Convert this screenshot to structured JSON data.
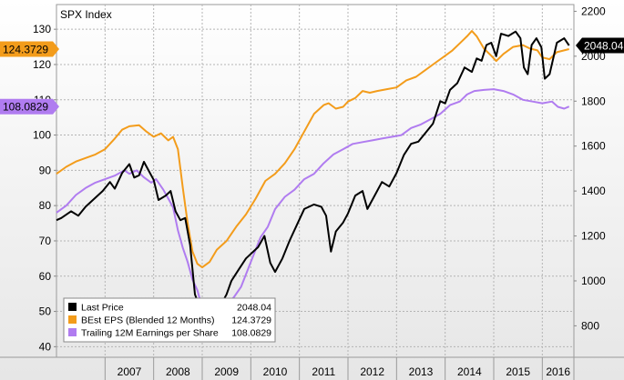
{
  "chart_data": {
    "type": "line",
    "title": "SPX Index",
    "x_labels": [
      "2007",
      "2008",
      "2009",
      "2010",
      "2011",
      "2012",
      "2013",
      "2014",
      "2015",
      "2016"
    ],
    "left_axis": {
      "ticks": [
        40,
        50,
        60,
        70,
        80,
        90,
        100,
        110,
        120,
        130
      ],
      "range": [
        37,
        137
      ]
    },
    "right_axis": {
      "ticks": [
        800,
        1000,
        1200,
        1400,
        1600,
        1800,
        2000,
        2200
      ],
      "range": [
        660,
        2230
      ]
    },
    "grid": true,
    "legend_position": "bottom-left",
    "series": [
      {
        "name": "Last Price",
        "color": "#000000",
        "axis": "right",
        "last_value": "2048.04",
        "points": [
          [
            2006.0,
            1270
          ],
          [
            2006.1,
            1280
          ],
          [
            2006.3,
            1310
          ],
          [
            2006.45,
            1290
          ],
          [
            2006.6,
            1330
          ],
          [
            2006.8,
            1370
          ],
          [
            2006.95,
            1400
          ],
          [
            2007.1,
            1440
          ],
          [
            2007.2,
            1410
          ],
          [
            2007.35,
            1480
          ],
          [
            2007.5,
            1520
          ],
          [
            2007.6,
            1460
          ],
          [
            2007.7,
            1470
          ],
          [
            2007.8,
            1530
          ],
          [
            2007.9,
            1490
          ],
          [
            2008.0,
            1450
          ],
          [
            2008.1,
            1360
          ],
          [
            2008.25,
            1380
          ],
          [
            2008.35,
            1400
          ],
          [
            2008.45,
            1310
          ],
          [
            2008.55,
            1270
          ],
          [
            2008.65,
            1280
          ],
          [
            2008.75,
            1160
          ],
          [
            2008.85,
            940
          ],
          [
            2008.92,
            900
          ],
          [
            2009.0,
            880
          ],
          [
            2009.1,
            820
          ],
          [
            2009.18,
            735
          ],
          [
            2009.25,
            800
          ],
          [
            2009.35,
            880
          ],
          [
            2009.5,
            940
          ],
          [
            2009.6,
            1000
          ],
          [
            2009.75,
            1050
          ],
          [
            2009.9,
            1100
          ],
          [
            2010.0,
            1120
          ],
          [
            2010.15,
            1150
          ],
          [
            2010.28,
            1200
          ],
          [
            2010.4,
            1080
          ],
          [
            2010.5,
            1040
          ],
          [
            2010.65,
            1100
          ],
          [
            2010.8,
            1180
          ],
          [
            2010.95,
            1250
          ],
          [
            2011.1,
            1320
          ],
          [
            2011.3,
            1340
          ],
          [
            2011.45,
            1330
          ],
          [
            2011.55,
            1290
          ],
          [
            2011.65,
            1130
          ],
          [
            2011.75,
            1220
          ],
          [
            2011.9,
            1260
          ],
          [
            2012.0,
            1300
          ],
          [
            2012.15,
            1380
          ],
          [
            2012.3,
            1400
          ],
          [
            2012.4,
            1320
          ],
          [
            2012.55,
            1380
          ],
          [
            2012.7,
            1440
          ],
          [
            2012.85,
            1420
          ],
          [
            2013.0,
            1480
          ],
          [
            2013.15,
            1560
          ],
          [
            2013.3,
            1610
          ],
          [
            2013.45,
            1620
          ],
          [
            2013.6,
            1660
          ],
          [
            2013.75,
            1700
          ],
          [
            2013.9,
            1800
          ],
          [
            2014.0,
            1790
          ],
          [
            2014.1,
            1850
          ],
          [
            2014.25,
            1880
          ],
          [
            2014.4,
            1950
          ],
          [
            2014.55,
            1930
          ],
          [
            2014.65,
            1990
          ],
          [
            2014.75,
            1980
          ],
          [
            2014.85,
            2050
          ],
          [
            2014.95,
            2060
          ],
          [
            2015.05,
            2000
          ],
          [
            2015.15,
            2100
          ],
          [
            2015.3,
            2090
          ],
          [
            2015.45,
            2110
          ],
          [
            2015.55,
            2080
          ],
          [
            2015.62,
            1950
          ],
          [
            2015.7,
            1920
          ],
          [
            2015.78,
            2050
          ],
          [
            2015.88,
            2080
          ],
          [
            2015.98,
            2040
          ],
          [
            2016.05,
            1900
          ],
          [
            2016.15,
            1920
          ],
          [
            2016.3,
            2060
          ],
          [
            2016.45,
            2080
          ],
          [
            2016.55,
            2048
          ]
        ]
      },
      {
        "name": "BEst EPS (Blended 12 Months)",
        "color": "#f39c1b",
        "axis": "left",
        "last_value": "124.3729",
        "points": [
          [
            2006.0,
            89
          ],
          [
            2006.2,
            91
          ],
          [
            2006.4,
            92.5
          ],
          [
            2006.6,
            93.5
          ],
          [
            2006.8,
            94.5
          ],
          [
            2007.0,
            96
          ],
          [
            2007.2,
            99
          ],
          [
            2007.35,
            101.5
          ],
          [
            2007.5,
            102.5
          ],
          [
            2007.7,
            102.8
          ],
          [
            2007.85,
            101
          ],
          [
            2008.0,
            99.5
          ],
          [
            2008.15,
            100.5
          ],
          [
            2008.3,
            98.5
          ],
          [
            2008.4,
            99.5
          ],
          [
            2008.5,
            96
          ],
          [
            2008.6,
            85
          ],
          [
            2008.7,
            75
          ],
          [
            2008.8,
            67
          ],
          [
            2008.9,
            63.5
          ],
          [
            2009.0,
            62.5
          ],
          [
            2009.15,
            64
          ],
          [
            2009.3,
            67.5
          ],
          [
            2009.5,
            70
          ],
          [
            2009.7,
            74
          ],
          [
            2009.9,
            77.5
          ],
          [
            2010.1,
            82
          ],
          [
            2010.3,
            87
          ],
          [
            2010.5,
            89
          ],
          [
            2010.7,
            92
          ],
          [
            2010.9,
            96
          ],
          [
            2011.1,
            101
          ],
          [
            2011.3,
            106
          ],
          [
            2011.5,
            108.5
          ],
          [
            2011.6,
            109
          ],
          [
            2011.75,
            107.5
          ],
          [
            2011.9,
            108
          ],
          [
            2012.0,
            109.5
          ],
          [
            2012.15,
            110.5
          ],
          [
            2012.3,
            112.5
          ],
          [
            2012.45,
            112
          ],
          [
            2012.6,
            112.5
          ],
          [
            2012.8,
            113
          ],
          [
            2013.0,
            113.5
          ],
          [
            2013.2,
            115.5
          ],
          [
            2013.4,
            116.5
          ],
          [
            2013.6,
            118.5
          ],
          [
            2013.8,
            120.5
          ],
          [
            2014.0,
            122.5
          ],
          [
            2014.15,
            124
          ],
          [
            2014.3,
            126
          ],
          [
            2014.45,
            128
          ],
          [
            2014.55,
            129.5
          ],
          [
            2014.65,
            128
          ],
          [
            2014.8,
            124.5
          ],
          [
            2014.95,
            122.5
          ],
          [
            2015.05,
            121
          ],
          [
            2015.2,
            123
          ],
          [
            2015.4,
            125
          ],
          [
            2015.6,
            125.5
          ],
          [
            2015.75,
            124.5
          ],
          [
            2015.9,
            124
          ],
          [
            2016.0,
            122
          ],
          [
            2016.15,
            121.5
          ],
          [
            2016.3,
            123.5
          ],
          [
            2016.45,
            124
          ],
          [
            2016.55,
            124.37
          ]
        ]
      },
      {
        "name": "Trailing 12M Earnings per Share",
        "color": "#b07cf0",
        "axis": "left",
        "last_value": "108.0829",
        "points": [
          [
            2006.0,
            78
          ],
          [
            2006.2,
            80
          ],
          [
            2006.4,
            83
          ],
          [
            2006.6,
            85
          ],
          [
            2006.8,
            86.5
          ],
          [
            2007.0,
            87.5
          ],
          [
            2007.2,
            88.5
          ],
          [
            2007.4,
            90
          ],
          [
            2007.5,
            89
          ],
          [
            2007.65,
            90
          ],
          [
            2007.8,
            88
          ],
          [
            2007.95,
            86.5
          ],
          [
            2008.05,
            87.5
          ],
          [
            2008.2,
            84.5
          ],
          [
            2008.3,
            82
          ],
          [
            2008.4,
            79.5
          ],
          [
            2008.5,
            73
          ],
          [
            2008.6,
            68
          ],
          [
            2008.7,
            64
          ],
          [
            2008.8,
            59
          ],
          [
            2008.9,
            56
          ],
          [
            2009.0,
            51
          ],
          [
            2009.1,
            49
          ],
          [
            2009.2,
            48
          ],
          [
            2009.3,
            46
          ],
          [
            2009.38,
            43.5
          ],
          [
            2009.42,
            49
          ],
          [
            2009.5,
            52
          ],
          [
            2009.65,
            54
          ],
          [
            2009.8,
            57
          ],
          [
            2010.0,
            64
          ],
          [
            2010.2,
            71
          ],
          [
            2010.35,
            74
          ],
          [
            2010.5,
            79
          ],
          [
            2010.7,
            82.5
          ],
          [
            2010.9,
            84.5
          ],
          [
            2011.1,
            87.5
          ],
          [
            2011.3,
            89
          ],
          [
            2011.5,
            92
          ],
          [
            2011.7,
            94.5
          ],
          [
            2011.9,
            96
          ],
          [
            2012.1,
            97.5
          ],
          [
            2012.3,
            98
          ],
          [
            2012.5,
            98.5
          ],
          [
            2012.7,
            99
          ],
          [
            2012.9,
            99.5
          ],
          [
            2013.1,
            100
          ],
          [
            2013.3,
            102
          ],
          [
            2013.5,
            103
          ],
          [
            2013.7,
            104.5
          ],
          [
            2013.9,
            106
          ],
          [
            2014.1,
            108.5
          ],
          [
            2014.3,
            109.5
          ],
          [
            2014.45,
            111.5
          ],
          [
            2014.6,
            112.5
          ],
          [
            2014.8,
            112.8
          ],
          [
            2015.0,
            113
          ],
          [
            2015.2,
            112.5
          ],
          [
            2015.4,
            111.5
          ],
          [
            2015.6,
            110
          ],
          [
            2015.8,
            109.5
          ],
          [
            2016.0,
            109
          ],
          [
            2016.2,
            109.5
          ],
          [
            2016.32,
            108
          ],
          [
            2016.45,
            107.5
          ],
          [
            2016.55,
            108.08
          ]
        ]
      }
    ]
  }
}
